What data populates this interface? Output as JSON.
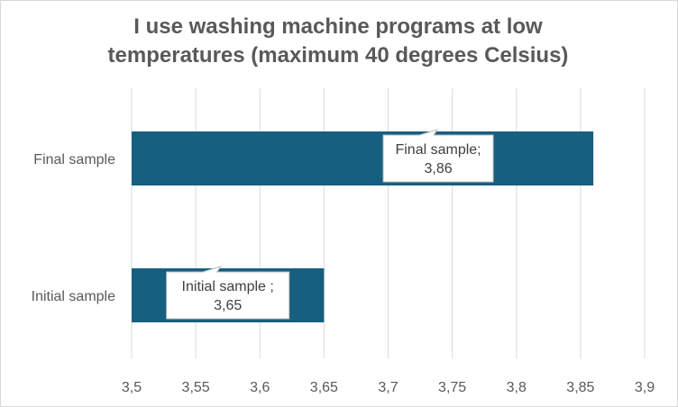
{
  "chart_data": {
    "type": "bar",
    "orientation": "horizontal",
    "title_lines": [
      "I use washing machine programs at low",
      "temperatures (maximum  40 degrees Celsius)"
    ],
    "categories": [
      "Final sample",
      "Initial sample"
    ],
    "values": [
      3.86,
      3.65
    ],
    "data_labels": [
      [
        "Final sample;",
        "3,86"
      ],
      [
        "Initial sample ;",
        "3,65"
      ]
    ],
    "xlim": [
      3.5,
      3.9
    ],
    "x_ticks": [
      "3,5",
      "3,55",
      "3,6",
      "3,65",
      "3,7",
      "3,75",
      "3,8",
      "3,85",
      "3,9"
    ],
    "xlabel": "",
    "ylabel": "",
    "grid": true,
    "legend": "none",
    "bar_color": "#175F80",
    "grid_color": "#d9d9d9"
  }
}
